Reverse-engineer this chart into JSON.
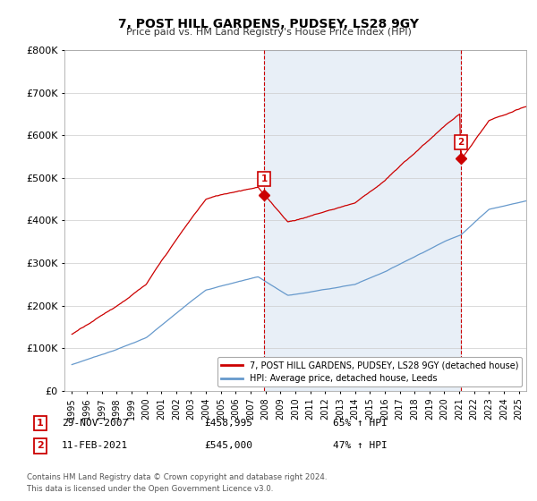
{
  "title": "7, POST HILL GARDENS, PUDSEY, LS28 9GY",
  "subtitle": "Price paid vs. HM Land Registry's House Price Index (HPI)",
  "legend_line1": "7, POST HILL GARDENS, PUDSEY, LS28 9GY (detached house)",
  "legend_line2": "HPI: Average price, detached house, Leeds",
  "footnote": "Contains HM Land Registry data © Crown copyright and database right 2024.\nThis data is licensed under the Open Government Licence v3.0.",
  "purchase1_date": "29-NOV-2007",
  "purchase1_price": 458995,
  "purchase1_label": "65% ↑ HPI",
  "purchase2_date": "11-FEB-2021",
  "purchase2_price": 545000,
  "purchase2_label": "47% ↑ HPI",
  "purchase1_x": 2007.91,
  "purchase2_x": 2021.12,
  "ylim": [
    0,
    800000
  ],
  "xlim": [
    1994.5,
    2025.5
  ],
  "property_color": "#cc0000",
  "hpi_color": "#6699cc",
  "vline_color": "#cc0000",
  "shade_color": "#ddeeff",
  "background_color": "#ffffff",
  "grid_color": "#cccccc"
}
